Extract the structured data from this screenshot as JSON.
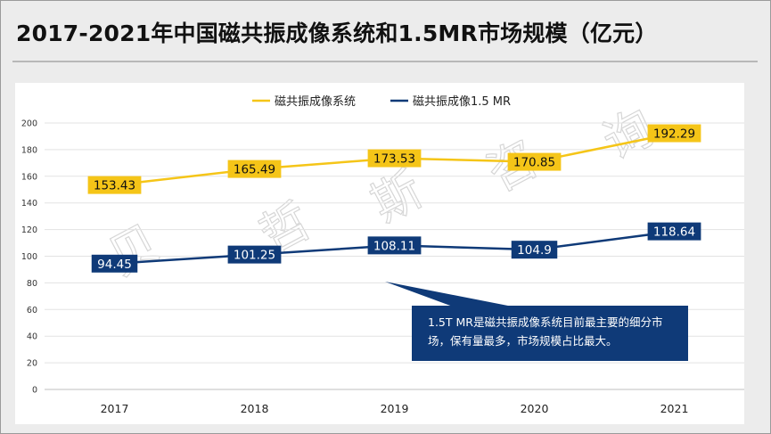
{
  "slide": {
    "title": "2017-2021年中国磁共振成像系统和1.5MR市场规模（亿元）",
    "watermark": [
      "贝",
      "哲",
      "斯",
      "咨",
      "询"
    ],
    "callout_text": "1.5T MR是磁共振成像系统目前最主要的细分市场，保有量最多，市场规模占比最大。"
  },
  "colors": {
    "series1": "#f5c518",
    "series1_label_bg": "#f5c518",
    "series2": "#0f3a78",
    "series2_label_bg": "#0f3a78",
    "callout_bg": "#0f3a78"
  },
  "chart_data": {
    "type": "line",
    "title": "2017-2021年中国磁共振成像系统和1.5MR市场规模（亿元）",
    "categories": [
      "2017",
      "2018",
      "2019",
      "2020",
      "2021"
    ],
    "series": [
      {
        "name": "磁共振成像系统",
        "values": [
          153.43,
          165.49,
          173.53,
          170.85,
          192.29
        ]
      },
      {
        "name": "磁共振成像1.5 MR",
        "values": [
          94.45,
          101.25,
          108.11,
          104.9,
          118.64
        ]
      }
    ],
    "value_labels": [
      [
        "153.43",
        "165.49",
        "173.53",
        "170.85",
        "192.29"
      ],
      [
        "94.45",
        "101.25",
        "108.11",
        "104.9",
        "118.64"
      ]
    ],
    "ylim": [
      0,
      200
    ],
    "yticks": [
      "0",
      "20",
      "40",
      "60",
      "80",
      "100",
      "120",
      "140",
      "160",
      "180",
      "200"
    ],
    "xlabel": "",
    "ylabel": "",
    "grid": true,
    "legend": "top"
  }
}
